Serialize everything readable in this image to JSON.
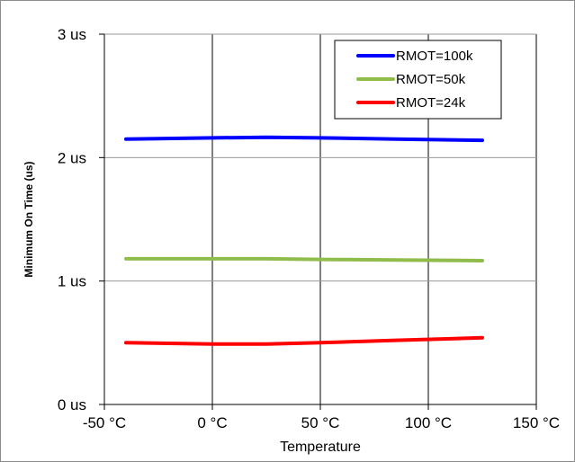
{
  "chart_data": {
    "type": "line",
    "title": "",
    "xlabel": "Temperature",
    "ylabel": "Minimum On Time (us)",
    "xlim": [
      -50,
      150
    ],
    "ylim": [
      0,
      3
    ],
    "x_ticks": [
      -50,
      0,
      50,
      100,
      150
    ],
    "x_tick_labels": [
      "-50 °C",
      "0 °C",
      "50 °C",
      "100 °C",
      "150 °C"
    ],
    "y_ticks": [
      0,
      1,
      2,
      3
    ],
    "y_tick_labels": [
      "0 us",
      "1 us",
      "2 us",
      "3 us"
    ],
    "grid": true,
    "legend_position": "top-right",
    "series": [
      {
        "name": "RMOT=100k",
        "color": "#0000ff",
        "x": [
          -40,
          0,
          25,
          50,
          85,
          125
        ],
        "y": [
          2.15,
          2.16,
          2.165,
          2.16,
          2.15,
          2.14
        ]
      },
      {
        "name": "RMOT=50k",
        "color": "#8fbc4a",
        "x": [
          -40,
          0,
          25,
          50,
          85,
          125
        ],
        "y": [
          1.18,
          1.18,
          1.18,
          1.175,
          1.17,
          1.165
        ]
      },
      {
        "name": "RMOT=24k",
        "color": "#ff0000",
        "x": [
          -40,
          0,
          25,
          50,
          85,
          125
        ],
        "y": [
          0.5,
          0.49,
          0.49,
          0.5,
          0.52,
          0.54
        ]
      }
    ]
  }
}
